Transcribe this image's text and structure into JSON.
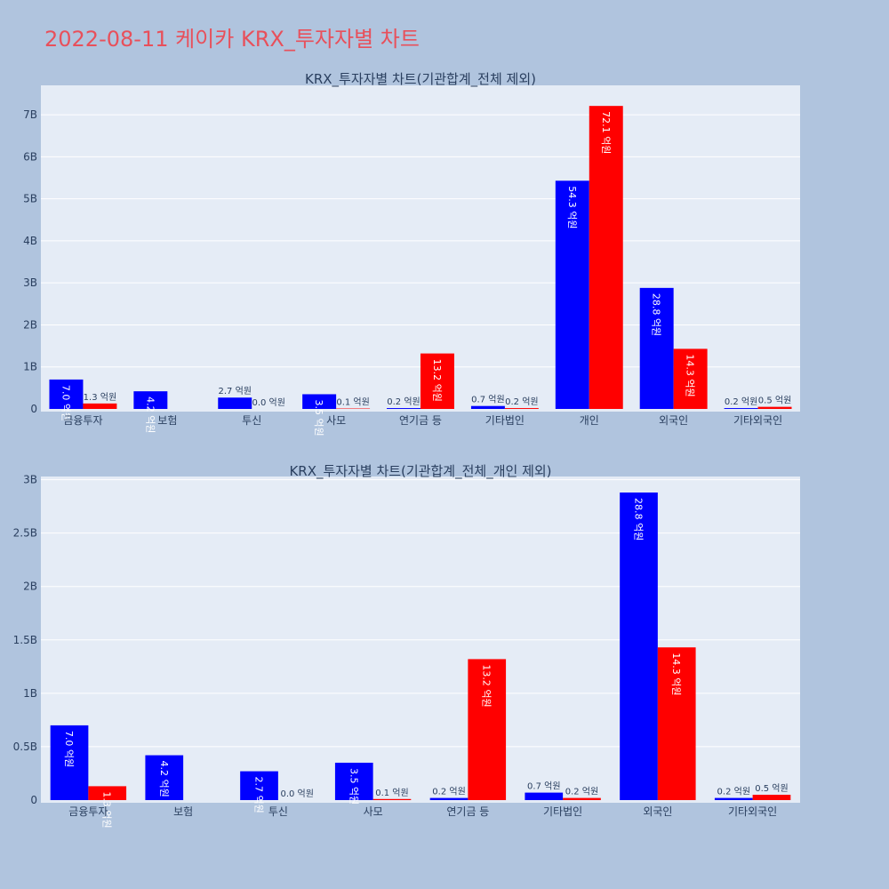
{
  "title": "2022-08-11 케이카 KRX_투자자별 차트",
  "colors": {
    "buy": "#0000ff",
    "sell": "#ff0000",
    "plot_bg": "#e5ecf6",
    "page_bg": "#b0c4de",
    "title": "#e8505b"
  },
  "chart_data": [
    {
      "type": "bar",
      "title": "KRX_투자자별 차트(기관합계_전체 제외)",
      "categories": [
        "금융투자",
        "보험",
        "투신",
        "사모",
        "연기금 등",
        "기타법인",
        "개인",
        "외국인",
        "기타외국인"
      ],
      "series": [
        {
          "values": [
            700000000,
            420000000,
            270000000,
            350000000,
            20000000,
            70000000,
            5430000000,
            2880000000,
            20000000
          ],
          "labels": [
            "7.0 억원",
            "4.2 억원",
            "2.7 억원",
            "3.5 억원",
            "0.2 억원",
            "0.7 억원",
            "54.3 억원",
            "28.8 억원",
            "0.2 억원"
          ]
        },
        {
          "values": [
            130000000,
            0,
            0,
            10000000,
            1320000000,
            20000000,
            7210000000,
            1430000000,
            50000000
          ],
          "labels": [
            "1.3 억원",
            "",
            "0.0 억원",
            "0.1 억원",
            "13.2 억원",
            "0.2 억원",
            "72.1 억원",
            "14.3 억원",
            "0.5 억원"
          ]
        }
      ],
      "ylim": [
        0,
        7700000000
      ],
      "yticks": [
        0,
        1000000000,
        2000000000,
        3000000000,
        4000000000,
        5000000000,
        6000000000,
        7000000000
      ],
      "ytick_labels": [
        "0",
        "1B",
        "2B",
        "3B",
        "4B",
        "5B",
        "6B",
        "7B"
      ],
      "grid": true
    },
    {
      "type": "bar",
      "title": "KRX_투자자별 차트(기관합계_전체_개인 제외)",
      "categories": [
        "금융투자",
        "보험",
        "투신",
        "사모",
        "연기금 등",
        "기타법인",
        "외국인",
        "기타외국인"
      ],
      "series": [
        {
          "values": [
            700000000,
            420000000,
            270000000,
            350000000,
            20000000,
            70000000,
            2880000000,
            20000000
          ],
          "labels": [
            "7.0 억원",
            "4.2 억원",
            "2.7 억원",
            "3.5 억원",
            "0.2 억원",
            "0.7 억원",
            "28.8 억원",
            "0.2 억원"
          ]
        },
        {
          "values": [
            130000000,
            0,
            0,
            10000000,
            1320000000,
            20000000,
            1430000000,
            50000000
          ],
          "labels": [
            "1.3 억원",
            "",
            "0.0 억원",
            "0.1 억원",
            "13.2 억원",
            "0.2 억원",
            "14.3 억원",
            "0.5 억원"
          ]
        }
      ],
      "ylim": [
        0,
        3030000000
      ],
      "yticks": [
        0,
        500000000,
        1000000000,
        1500000000,
        2000000000,
        2500000000,
        3000000000
      ],
      "ytick_labels": [
        "0",
        "0.5B",
        "1B",
        "1.5B",
        "2B",
        "2.5B",
        "3B"
      ],
      "grid": true
    }
  ]
}
